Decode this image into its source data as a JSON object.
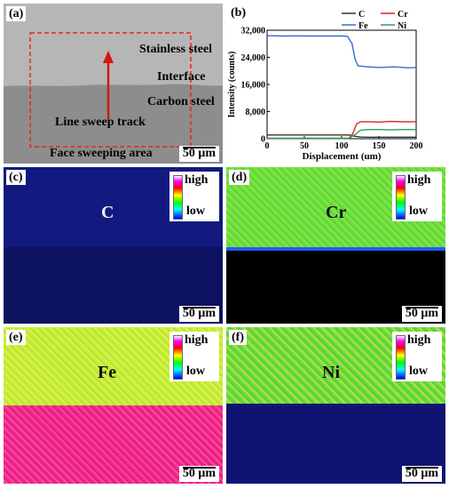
{
  "panel_a": {
    "label": "(a)",
    "stainless": "Stainless steel",
    "interface": "Interface",
    "carbon": "Carbon steel",
    "line_sweep": "Line sweep track",
    "face_sweep": "Face sweeping area",
    "scale": "50 μm",
    "colors": {
      "stainless": "#b4b4b4",
      "carbon": "#8e8e8e",
      "box": "#e8261d",
      "arrow": "#d9140e"
    }
  },
  "panel_b": {
    "label": "(b)",
    "chart_data": {
      "type": "line",
      "xlabel": "Displacement (um)",
      "ylabel": "Intensity (counts)",
      "xlim": [
        0,
        200
      ],
      "ylim": [
        0,
        32000
      ],
      "xticks": [
        "0",
        "50",
        "100",
        "150",
        "200"
      ],
      "yticks": [
        "0",
        "8,000",
        "16,000",
        "24,000",
        "32,000"
      ],
      "legend_position": "top",
      "series": [
        {
          "name": "C",
          "color": "#333333",
          "x": [
            0,
            40,
            80,
            110,
            118,
            125,
            135,
            150,
            165,
            180,
            200
          ],
          "y": [
            1100,
            1100,
            1100,
            1100,
            700,
            500,
            450,
            450,
            450,
            450,
            450
          ]
        },
        {
          "name": "Cr",
          "color": "#e0241c",
          "x": [
            0,
            40,
            80,
            110,
            115,
            120,
            125,
            135,
            150,
            165,
            180,
            200
          ],
          "y": [
            150,
            150,
            150,
            150,
            1500,
            4300,
            5000,
            5000,
            4900,
            5100,
            5000,
            5000
          ]
        },
        {
          "name": "Fe",
          "color": "#2f6fd0",
          "x": [
            0,
            20,
            40,
            60,
            80,
            100,
            108,
            114,
            118,
            122,
            130,
            150,
            170,
            190,
            200
          ],
          "y": [
            30400,
            30300,
            30350,
            30300,
            30300,
            30300,
            30200,
            28000,
            23500,
            21500,
            21300,
            21000,
            21200,
            20900,
            21000
          ]
        },
        {
          "name": "Ni",
          "color": "#2aa05a",
          "x": [
            0,
            40,
            80,
            110,
            118,
            125,
            135,
            150,
            165,
            180,
            200
          ],
          "y": [
            100,
            100,
            100,
            100,
            1200,
            2500,
            2700,
            2700,
            2600,
            2700,
            2700
          ]
        }
      ]
    }
  },
  "panel_c": {
    "label": "(c)",
    "element": "C",
    "high": "high",
    "low": "low",
    "scale": "50 μm",
    "colors": {
      "top": "#121a80",
      "bottom": "#0c1260"
    }
  },
  "panel_d": {
    "label": "(d)",
    "element": "Cr",
    "high": "high",
    "low": "low",
    "scale": "50 μm",
    "colors": {
      "top": "#73e03a",
      "bottom": "#000000",
      "edge": "#1f5cff"
    }
  },
  "panel_e": {
    "label": "(e)",
    "element": "Fe",
    "high": "high",
    "low": "low",
    "scale": "50 μm",
    "colors": {
      "top": "#ccf03a",
      "bottom": "#f0288a"
    }
  },
  "panel_f": {
    "label": "(f)",
    "element": "Ni",
    "high": "high",
    "low": "low",
    "scale": "50 μm",
    "colors": {
      "top": "#64dc3c",
      "bottom": "#0f1472"
    }
  }
}
